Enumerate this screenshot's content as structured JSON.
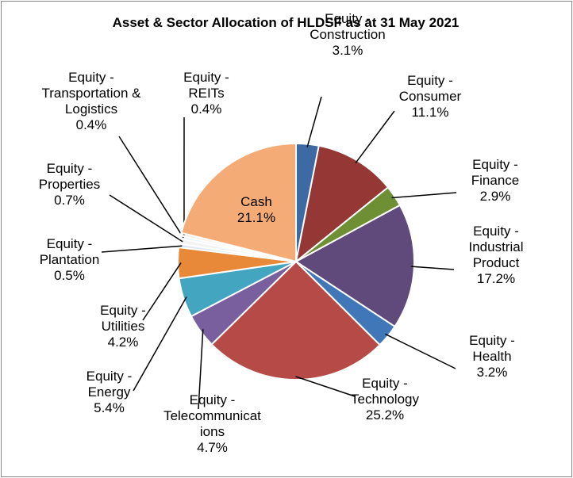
{
  "chart_data": {
    "type": "pie",
    "title": "Asset & Sector Allocation of HLDSF as at 31 May 2021",
    "categories": [
      "Equity - Construction",
      "Equity - Consumer",
      "Equity - Finance",
      "Equity - Industrial Product",
      "Equity - Health",
      "Equity - Technology",
      "Equity - Telecommunications",
      "Equity - Energy",
      "Equity - Utilities",
      "Equity - Plantation",
      "Equity - Properties",
      "Equity - Transportation & Logistics",
      "Equity - REITs",
      "Cash"
    ],
    "values": [
      3.1,
      11.1,
      2.9,
      17.2,
      3.2,
      25.2,
      4.7,
      5.4,
      4.2,
      0.5,
      0.7,
      0.4,
      0.4,
      21.1
    ],
    "value_labels": [
      "3.1%",
      "11.1%",
      "2.9%",
      "17.2%",
      "3.2%",
      "25.2%",
      "4.7%",
      "5.4%",
      "4.2%",
      "0.5%",
      "0.7%",
      "0.4%",
      "0.4%",
      "21.1%"
    ],
    "colors": [
      "#3e6aa3",
      "#953735",
      "#6f8f35",
      "#604a7b",
      "#3f77b8",
      "#b54a47",
      "#7a5f9f",
      "#44a5c0",
      "#e8893a",
      "#dfe8f3",
      "#f3f3f3",
      "#eef3fa",
      "#f6ece2",
      "#f5ab76"
    ]
  }
}
